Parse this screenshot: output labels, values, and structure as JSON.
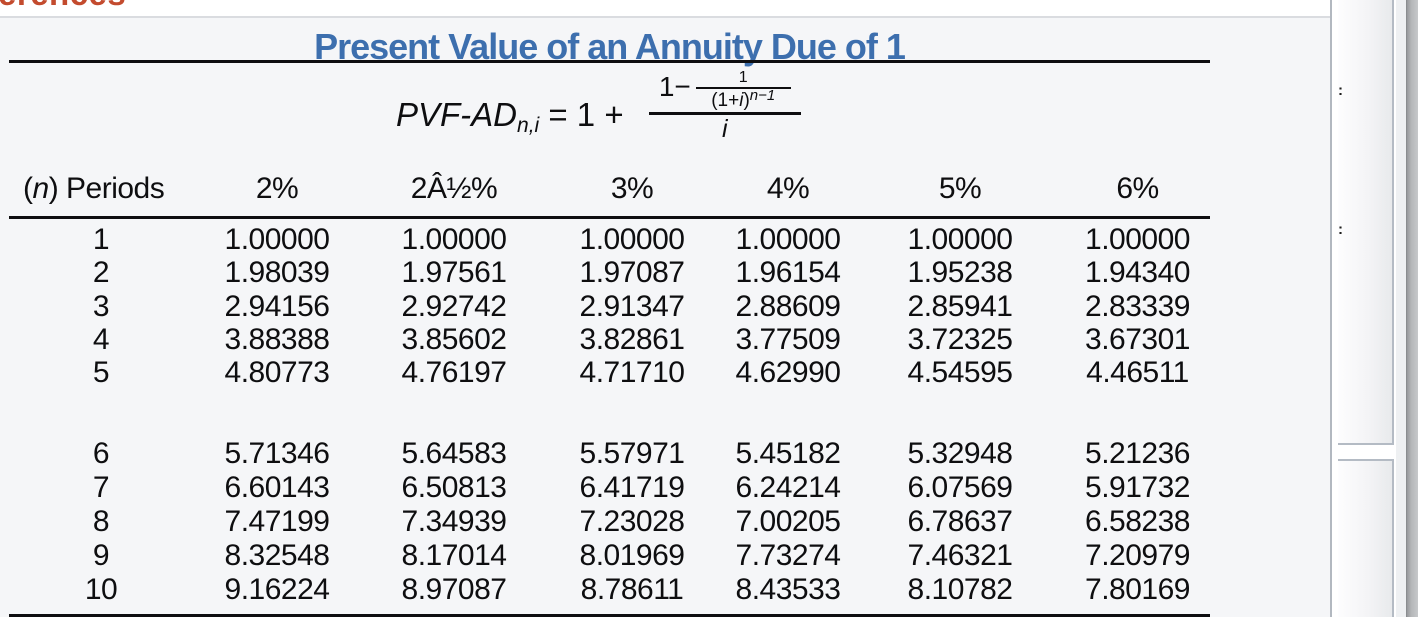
{
  "clipped_heading": "erences",
  "card": {
    "title": "Present Value of an Annuity Due of 1",
    "title_color": "#3d6fae"
  },
  "formula": {
    "lhs": "PVF-AD",
    "lhs_subscript": "n,i",
    "equals": " = 1 + ",
    "outer_numerator_prefix": "1−",
    "inner_numerator": "1",
    "inner_den_pre": "(1+",
    "inner_den_i": "i",
    "inner_den_post": ")",
    "inner_exponent": "n−1",
    "outer_denominator": "i"
  },
  "table": {
    "periods_header_pre": "(",
    "periods_header_n": "n",
    "periods_header_post": ") Periods",
    "rate_headers": [
      "2%",
      "2Â½%",
      "3%",
      "4%",
      "5%",
      "6%"
    ],
    "rows": [
      {
        "n": "1",
        "values": [
          "1.00000",
          "1.00000",
          "1.00000",
          "1.00000",
          "1.00000",
          "1.00000"
        ]
      },
      {
        "n": "2",
        "values": [
          "1.98039",
          "1.97561",
          "1.97087",
          "1.96154",
          "1.95238",
          "1.94340"
        ]
      },
      {
        "n": "3",
        "values": [
          "2.94156",
          "2.92742",
          "2.91347",
          "2.88609",
          "2.85941",
          "2.83339"
        ]
      },
      {
        "n": "4",
        "values": [
          "3.88388",
          "3.85602",
          "3.82861",
          "3.77509",
          "3.72325",
          "3.67301"
        ]
      },
      {
        "n": "5",
        "values": [
          "4.80773",
          "4.76197",
          "4.71710",
          "4.62990",
          "4.54595",
          "4.46511"
        ]
      },
      {
        "n": "6",
        "values": [
          "5.71346",
          "5.64583",
          "5.57971",
          "5.45182",
          "5.32948",
          "5.21236"
        ]
      },
      {
        "n": "7",
        "values": [
          "6.60143",
          "6.50813",
          "6.41719",
          "6.24214",
          "6.07569",
          "5.91732"
        ]
      },
      {
        "n": "8",
        "values": [
          "7.47199",
          "7.34939",
          "7.23028",
          "7.00205",
          "6.78637",
          "6.58238"
        ]
      },
      {
        "n": "9",
        "values": [
          "8.32548",
          "8.17014",
          "8.01969",
          "7.73274",
          "7.46321",
          "7.20979"
        ]
      },
      {
        "n": "10",
        "values": [
          "9.16224",
          "8.97087",
          "8.78611",
          "8.43533",
          "8.10782",
          "7.80169"
        ]
      }
    ]
  },
  "edge_fragments": [
    ":",
    ":"
  ]
}
